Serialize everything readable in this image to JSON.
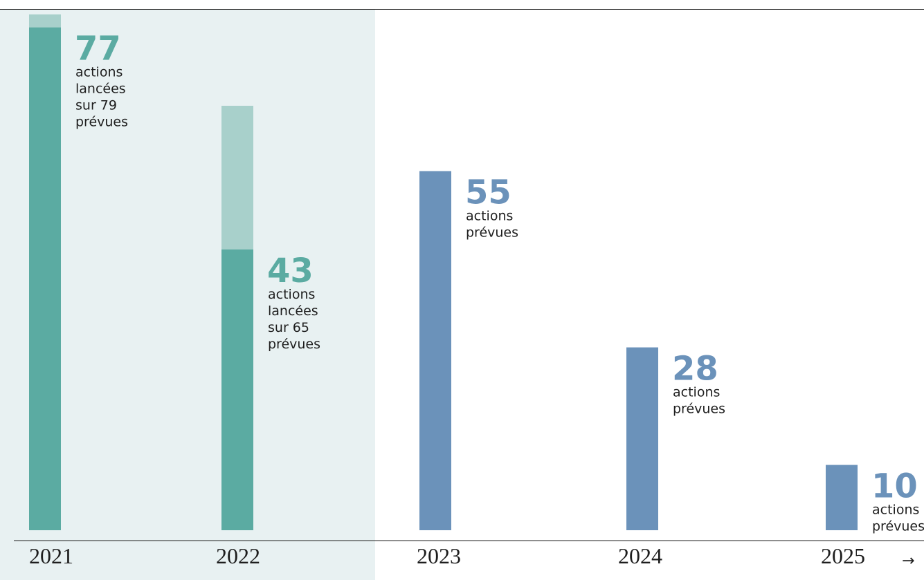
{
  "colors": {
    "launched": "#5BABA2",
    "planned_remaining": "#A8D0CB",
    "future": "#6B92BA",
    "past_background": "#E8F1F2",
    "axis": "#1e1e1e"
  },
  "axis_arrow": "→",
  "chart_data": {
    "type": "bar",
    "title": "",
    "xlabel": "",
    "ylabel": "",
    "ylim": [
      0,
      81.2
    ],
    "grid": false,
    "categories": [
      "2021",
      "2022",
      "2023",
      "2024",
      "2025"
    ],
    "series": [
      {
        "key": "launched",
        "values": [
          77,
          43,
          null,
          null,
          null
        ]
      },
      {
        "key": "planned",
        "values": [
          79,
          65,
          55,
          28,
          10
        ]
      }
    ],
    "highlight_categories": [
      "2021",
      "2022"
    ],
    "annotations": [
      {
        "category": "2021",
        "value": "77",
        "lines": [
          "actions",
          "lancées",
          "sur 79",
          "prévues"
        ]
      },
      {
        "category": "2022",
        "value": "43",
        "lines": [
          "actions",
          "lancées",
          "sur 65",
          "prévues"
        ]
      },
      {
        "category": "2023",
        "value": "55",
        "lines": [
          "actions",
          "prévues"
        ]
      },
      {
        "category": "2024",
        "value": "28",
        "lines": [
          "actions",
          "prévues"
        ]
      },
      {
        "category": "2025",
        "value": "10",
        "lines": [
          "actions",
          "prévues"
        ]
      }
    ]
  }
}
